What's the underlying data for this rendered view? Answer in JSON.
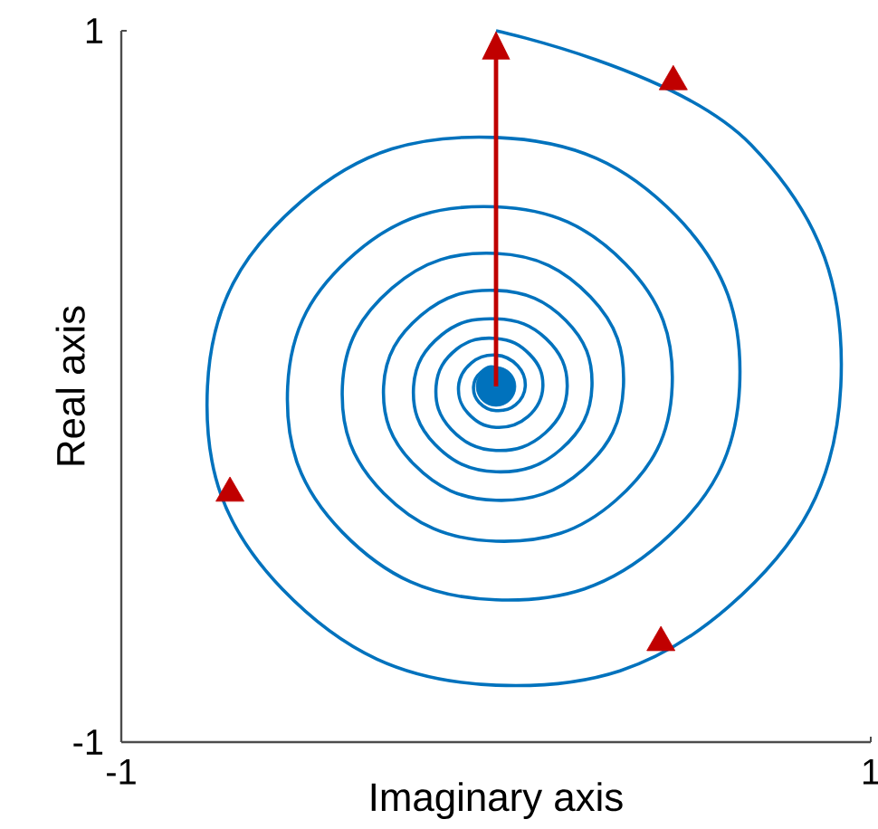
{
  "chart_data": {
    "type": "line",
    "xlabel": "Imaginary axis",
    "ylabel": "Real axis",
    "xlim": [
      -1,
      1
    ],
    "ylim": [
      -1,
      1
    ],
    "xticks": [
      -1,
      1
    ],
    "yticks": [
      -1,
      1
    ],
    "grid": false,
    "series": [
      {
        "color": "#0072bd",
        "marker": "none",
        "x": [
          0,
          0.68,
          0.92,
          0.62,
          0,
          -0.57,
          -0.77,
          -0.52,
          0,
          0.48,
          0.65,
          0.44,
          0,
          -0.41,
          -0.556,
          -0.375,
          0,
          0.345,
          0.47,
          0.32,
          0,
          -0.3,
          -0.41,
          -0.277,
          0,
          0.252,
          0.34,
          0.233,
          0,
          -0.219,
          -0.3,
          -0.2,
          0,
          0.186,
          0.256,
          0.175,
          0,
          -0.163,
          -0.22,
          -0.145,
          0,
          0.134,
          0.19,
          0.131,
          0,
          -0.12,
          -0.16,
          -0.105,
          0,
          0.09,
          0.125,
          0.085,
          0,
          -0.075,
          -0.1,
          -0.066,
          0,
          0.058,
          0.078,
          0.052,
          0,
          -0.045,
          -0.06,
          -0.04,
          0,
          0.045,
          0,
          -0.035,
          0
        ],
        "values": [
          1,
          0.68,
          0,
          -0.62,
          -0.84,
          -0.57,
          0,
          0.52,
          0.7,
          0.48,
          0,
          -0.44,
          -0.6,
          -0.41,
          0,
          0.375,
          0.505,
          0.345,
          0,
          -0.32,
          -0.435,
          -0.3,
          0,
          0.277,
          0.374,
          0.252,
          0,
          -0.233,
          -0.32,
          -0.219,
          0,
          0.2,
          0.27,
          0.186,
          0,
          -0.175,
          -0.24,
          -0.163,
          0,
          0.145,
          0.19,
          0.134,
          0,
          -0.131,
          -0.18,
          -0.12,
          0,
          0.105,
          0.135,
          0.09,
          0,
          -0.085,
          -0.115,
          -0.075,
          0,
          0.066,
          0.088,
          0.058,
          0,
          -0.052,
          -0.068,
          -0.045,
          0,
          0.04,
          0.052,
          0,
          -0.04,
          0,
          0.03
        ]
      },
      {
        "type": "scatter",
        "color": "#0072bd",
        "marker": "circle",
        "x": [
          0
        ],
        "values": [
          0
        ]
      },
      {
        "type": "scatter",
        "color": "#c00000",
        "marker": "triangle",
        "x": [
          0.473,
          -0.71,
          0.44
        ],
        "values": [
          0.857,
          -0.3,
          -0.72
        ]
      }
    ]
  }
}
